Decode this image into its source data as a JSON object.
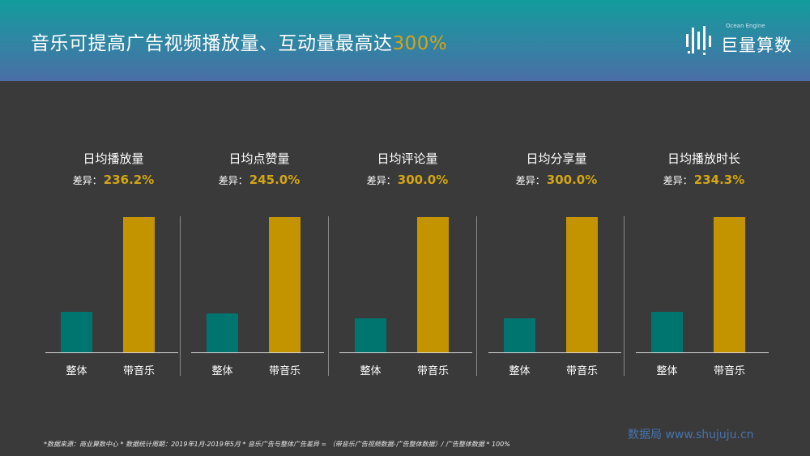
{
  "header": {
    "title_main": "音乐可提高广告视频播放量、互动量最高达",
    "title_highlight": "300%",
    "logo_text": "巨量算数",
    "logo_subtext": "Ocean Engine"
  },
  "chart_data": {
    "type": "bar",
    "categories": [
      "整体",
      "带音乐"
    ],
    "colors": {
      "整体": "#007570",
      "带音乐": "#c49400"
    },
    "ylim": [
      0,
      100
    ],
    "panels": [
      {
        "title": "日均播放量",
        "diff_label": "差异：",
        "diff_value": "236.2%",
        "values": [
          30,
          100
        ]
      },
      {
        "title": "日均点赞量",
        "diff_label": "差异：",
        "diff_value": "245.0%",
        "values": [
          29,
          100
        ]
      },
      {
        "title": "日均评论量",
        "diff_label": "差异：",
        "diff_value": "300.0%",
        "values": [
          25,
          100
        ]
      },
      {
        "title": "日均分享量",
        "diff_label": "差异：",
        "diff_value": "300.0%",
        "values": [
          25,
          100
        ]
      },
      {
        "title": "日均播放时长",
        "diff_label": "差异：",
        "diff_value": "234.3%",
        "values": [
          30,
          100
        ]
      }
    ]
  },
  "footnote": "*数据来源：商业算数中心 * 数据统计周期：2019年1月-2019年5月 * 音乐广告与整体广告差异 = （带音乐广告视频数据-广告整体数据）/ 广告整体数据 * 100%",
  "watermark": "数据局 www.shujuju.cn"
}
